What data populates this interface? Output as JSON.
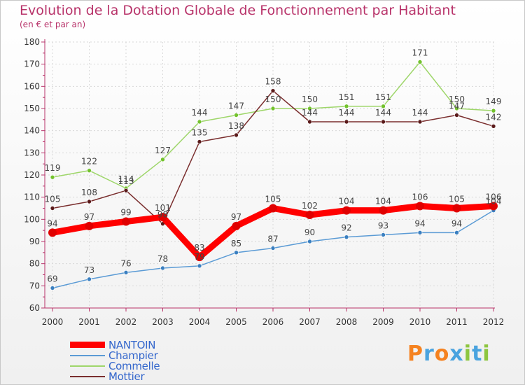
{
  "title": "Evolution de la Dotation Globale de Fonctionnement par Habitant",
  "subtitle": "(en € et par an)",
  "logo": {
    "letters": [
      "P",
      "r",
      "o",
      "x",
      "i",
      "t",
      "i"
    ],
    "colors": [
      "#f58220",
      "#4aa3df",
      "#f58220",
      "#4aa3df",
      "#8dc63f",
      "#4aa3df",
      "#8dc63f"
    ]
  },
  "chart_data": {
    "type": "line",
    "title": "Evolution de la Dotation Globale de Fonctionnement par Habitant",
    "subtitle": "(en € et par an)",
    "xlabel": "",
    "ylabel": "",
    "ylim": [
      60,
      180
    ],
    "yticks": [
      "60",
      "70",
      "80",
      "90",
      "100",
      "110",
      "120",
      "130",
      "140",
      "150",
      "160",
      "170",
      "180"
    ],
    "categories": [
      "2000",
      "2001",
      "2002",
      "2003",
      "2004",
      "2005",
      "2006",
      "2007",
      "2008",
      "2009",
      "2010",
      "2011",
      "2012"
    ],
    "series": [
      {
        "name": "Champier",
        "color": "#5b9bd5",
        "dot": "#3a7fc0",
        "values": [
          69,
          73,
          76,
          78,
          79,
          85,
          87,
          90,
          92,
          93,
          94,
          94,
          104
        ],
        "labels": [
          "69",
          "73",
          "76",
          "78",
          "79",
          "85",
          "87",
          "90",
          "92",
          "93",
          "94",
          "94",
          "104"
        ]
      },
      {
        "name": "Commelle",
        "color": "#9ed66a",
        "dot": "#72c22c",
        "values": [
          119,
          122,
          114,
          127,
          144,
          147,
          150,
          150,
          151,
          151,
          171,
          150,
          149
        ],
        "labels": [
          "119",
          "122",
          "114",
          "127",
          "144",
          "147",
          "150",
          "150",
          "151",
          "151",
          "171",
          "150",
          "149"
        ]
      },
      {
        "name": "Mottier",
        "color": "#7a2e2e",
        "dot": "#5a1a1a",
        "values": [
          105,
          108,
          113,
          98,
          135,
          138,
          158,
          144,
          144,
          144,
          144,
          147,
          142
        ],
        "labels": [
          "105",
          "108",
          "113",
          "98",
          "135",
          "138",
          "158",
          "144",
          "144",
          "144",
          "144",
          "147",
          "142"
        ]
      },
      {
        "name": "NANTOIN",
        "color": "#ff0000",
        "dot": "#e00000",
        "values": [
          94,
          97,
          99,
          101,
          83,
          97,
          105,
          102,
          104,
          104,
          106,
          105,
          106
        ],
        "labels": [
          "94",
          "97",
          "99",
          "101",
          "83",
          "97",
          "105",
          "102",
          "104",
          "104",
          "106",
          "105",
          "106"
        ]
      }
    ],
    "legend": [
      {
        "name": "NANTOIN",
        "color": "#ff0000",
        "text_color": "#3366cc"
      },
      {
        "name": "Champier",
        "color": "#5b9bd5",
        "text_color": "#3366cc"
      },
      {
        "name": "Commelle",
        "color": "#9ed66a",
        "text_color": "#3366cc"
      },
      {
        "name": "Mottier",
        "color": "#7a2e2e",
        "text_color": "#3366cc"
      }
    ],
    "legend_position": "bottom-left"
  }
}
